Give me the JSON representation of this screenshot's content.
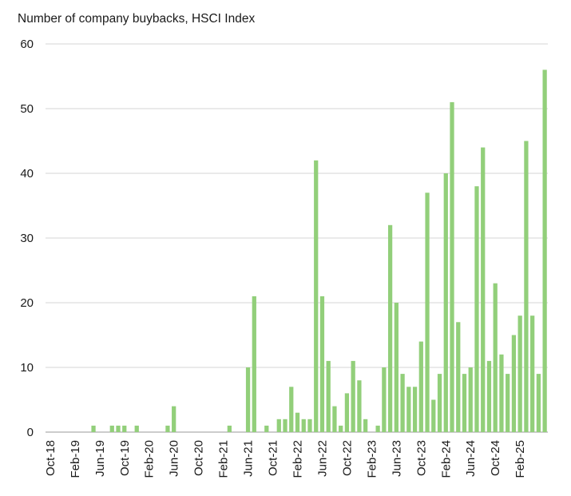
{
  "chart_data": {
    "type": "bar",
    "title": "Number of company buybacks, HSCI Index",
    "xlabel": "",
    "ylabel": "",
    "ylim": [
      0,
      60
    ],
    "yticks": [
      0,
      10,
      20,
      30,
      40,
      50,
      60
    ],
    "grid": true,
    "bar_color": "#92cf7a",
    "categories": [
      "Oct-18",
      "Nov-18",
      "Dec-18",
      "Jan-19",
      "Feb-19",
      "Mar-19",
      "Apr-19",
      "May-19",
      "Jun-19",
      "Jul-19",
      "Aug-19",
      "Sep-19",
      "Oct-19",
      "Nov-19",
      "Dec-19",
      "Jan-20",
      "Feb-20",
      "Mar-20",
      "Apr-20",
      "May-20",
      "Jun-20",
      "Jul-20",
      "Aug-20",
      "Sep-20",
      "Oct-20",
      "Nov-20",
      "Dec-20",
      "Jan-21",
      "Feb-21",
      "Mar-21",
      "Apr-21",
      "May-21",
      "Jun-21",
      "Jul-21",
      "Aug-21",
      "Sep-21",
      "Oct-21",
      "Nov-21",
      "Dec-21",
      "Jan-22",
      "Feb-22",
      "Mar-22",
      "Apr-22",
      "May-22",
      "Jun-22",
      "Jul-22",
      "Aug-22",
      "Sep-22",
      "Oct-22",
      "Nov-22",
      "Dec-22",
      "Jan-23",
      "Feb-23",
      "Mar-23",
      "Apr-23",
      "May-23",
      "Jun-23",
      "Jul-23",
      "Aug-23",
      "Sep-23",
      "Oct-23",
      "Nov-23",
      "Dec-23",
      "Jan-24",
      "Feb-24",
      "Mar-24",
      "Apr-24",
      "May-24",
      "Jun-24",
      "Jul-24",
      "Aug-24",
      "Sep-24",
      "Oct-24",
      "Nov-24",
      "Dec-24",
      "Jan-25",
      "Feb-25",
      "Mar-25",
      "Apr-25",
      "May-25",
      "Jun-25"
    ],
    "values": [
      0,
      0,
      0,
      0,
      0,
      0,
      0,
      1,
      0,
      0,
      1,
      1,
      1,
      0,
      1,
      0,
      0,
      0,
      0,
      1,
      4,
      0,
      0,
      0,
      0,
      0,
      0,
      0,
      0,
      1,
      0,
      0,
      10,
      21,
      0,
      1,
      0,
      2,
      2,
      7,
      3,
      2,
      2,
      42,
      21,
      11,
      4,
      1,
      6,
      11,
      8,
      2,
      0,
      1,
      10,
      32,
      20,
      9,
      7,
      7,
      14,
      37,
      5,
      9,
      40,
      51,
      17,
      9,
      10,
      38,
      44,
      11,
      23,
      12,
      9,
      15,
      18,
      45,
      18,
      9,
      56
    ],
    "x_tick_labels": [
      "Oct-18",
      "Feb-19",
      "Jun-19",
      "Oct-19",
      "Feb-20",
      "Jun-20",
      "Oct-20",
      "Feb-21",
      "Jun-21",
      "Oct-21",
      "Feb-22",
      "Jun-22",
      "Oct-22",
      "Feb-23",
      "Jun-23",
      "Oct-23",
      "Feb-24",
      "Jun-24",
      "Oct-24",
      "Feb-25"
    ]
  }
}
